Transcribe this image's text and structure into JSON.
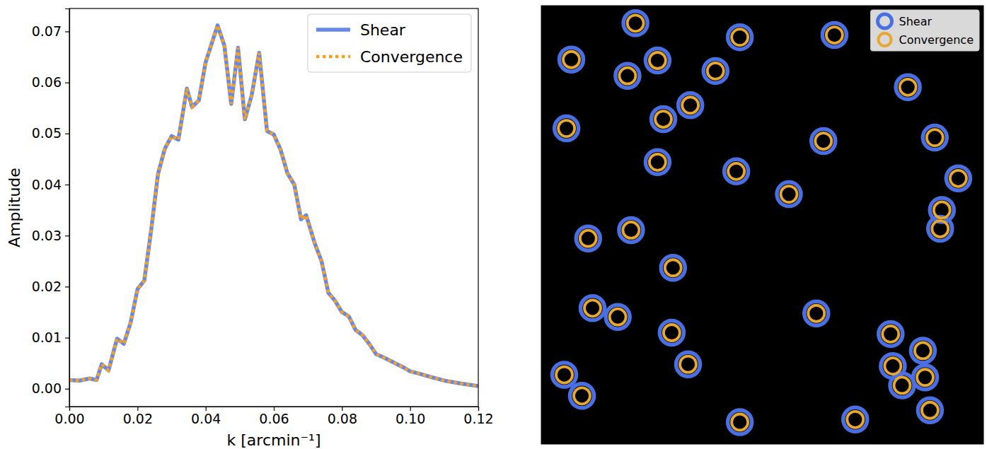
{
  "chart_data": [
    {
      "type": "line",
      "x_label": "k [arcmin⁻¹]",
      "y_label": "Amplitude",
      "x": [
        0.0,
        0.003,
        0.006,
        0.008,
        0.0095,
        0.0115,
        0.014,
        0.016,
        0.018,
        0.02,
        0.022,
        0.024,
        0.026,
        0.028,
        0.03,
        0.032,
        0.0345,
        0.036,
        0.038,
        0.04,
        0.0435,
        0.0455,
        0.0475,
        0.0495,
        0.0515,
        0.0535,
        0.0557,
        0.058,
        0.06,
        0.062,
        0.064,
        0.066,
        0.068,
        0.0695,
        0.072,
        0.074,
        0.076,
        0.078,
        0.08,
        0.082,
        0.084,
        0.086,
        0.088,
        0.09,
        0.092,
        0.095,
        0.098,
        0.1,
        0.103,
        0.106,
        0.11,
        0.115,
        0.12
      ],
      "series": [
        {
          "name": "Shear",
          "color": "#6688e8",
          "line_style": "solid",
          "values": [
            0.0017,
            0.0016,
            0.002,
            0.0017,
            0.0048,
            0.0036,
            0.0098,
            0.0088,
            0.013,
            0.0195,
            0.0212,
            0.031,
            0.042,
            0.047,
            0.0495,
            0.0488,
            0.0588,
            0.0552,
            0.0565,
            0.064,
            0.0712,
            0.0672,
            0.0558,
            0.0668,
            0.0528,
            0.0575,
            0.0658,
            0.0505,
            0.0498,
            0.0468,
            0.0422,
            0.04,
            0.0332,
            0.034,
            0.0285,
            0.025,
            0.0188,
            0.0172,
            0.015,
            0.0142,
            0.0115,
            0.0105,
            0.0088,
            0.0068,
            0.0062,
            0.0052,
            0.0042,
            0.0034,
            0.0029,
            0.0023,
            0.0016,
            0.001,
            0.0005
          ]
        },
        {
          "name": "Convergence",
          "color": "#f5a020",
          "line_style": "dotted",
          "values": [
            0.0017,
            0.0016,
            0.002,
            0.0017,
            0.0048,
            0.0036,
            0.0098,
            0.0088,
            0.013,
            0.0195,
            0.0212,
            0.031,
            0.042,
            0.047,
            0.0495,
            0.0488,
            0.0588,
            0.0552,
            0.0565,
            0.064,
            0.0712,
            0.0672,
            0.0558,
            0.0668,
            0.0528,
            0.0575,
            0.0658,
            0.0505,
            0.0498,
            0.0468,
            0.0422,
            0.04,
            0.0332,
            0.034,
            0.0285,
            0.025,
            0.0188,
            0.0172,
            0.015,
            0.0142,
            0.0115,
            0.0105,
            0.0088,
            0.0068,
            0.0062,
            0.0052,
            0.0042,
            0.0034,
            0.0029,
            0.0023,
            0.0016,
            0.001,
            0.0005
          ]
        }
      ],
      "xlim": [
        0.0,
        0.12
      ],
      "xticks": [
        {
          "value": 0.0,
          "label": "0.00"
        },
        {
          "value": 0.02,
          "label": "0.02"
        },
        {
          "value": 0.04,
          "label": "0.04"
        },
        {
          "value": 0.06,
          "label": "0.06"
        },
        {
          "value": 0.08,
          "label": "0.08"
        },
        {
          "value": 0.1,
          "label": "0.10"
        },
        {
          "value": 0.12,
          "label": "0.12"
        }
      ],
      "ylim": [
        -0.0035,
        0.0745
      ],
      "yticks": [
        {
          "value": 0.0,
          "label": "0.00"
        },
        {
          "value": 0.01,
          "label": "0.01"
        },
        {
          "value": 0.02,
          "label": "0.02"
        },
        {
          "value": 0.03,
          "label": "0.03"
        },
        {
          "value": 0.04,
          "label": "0.04"
        },
        {
          "value": 0.05,
          "label": "0.05"
        },
        {
          "value": 0.06,
          "label": "0.06"
        },
        {
          "value": 0.07,
          "label": "0.07"
        }
      ],
      "legend": "upper right"
    },
    {
      "type": "scatter",
      "tick_labels": false,
      "marker": "circle",
      "xlim": [
        0,
        100
      ],
      "ylim": [
        0,
        100
      ],
      "series": [
        {
          "name": "Shear",
          "color": "#4a6fe3",
          "x": [
            21.3,
            44.9,
            66.3,
            6.8,
            26.3,
            19.5,
            39.4,
            82.9,
            33.7,
            27.6,
            5.7,
            89.0,
            63.8,
            26.3,
            44.1,
            94.3,
            56.0,
            90.6,
            20.3,
            90.2,
            10.6,
            29.8,
            11.6,
            17.3,
            62.2,
            29.5,
            79.0,
            86.3,
            33.2,
            79.5,
            86.8,
            81.6,
            5.2,
            9.2,
            87.9,
            44.9,
            71.0
          ],
          "values": [
            96.0,
            92.8,
            93.3,
            87.7,
            87.5,
            84.0,
            85.1,
            81.4,
            77.3,
            74.1,
            72.0,
            69.9,
            69.1,
            64.3,
            62.2,
            60.6,
            57.0,
            53.4,
            48.8,
            49.1,
            46.9,
            40.2,
            31.0,
            29.0,
            29.8,
            25.4,
            25.1,
            21.3,
            18.2,
            17.8,
            15.2,
            13.4,
            15.8,
            11.0,
            7.7,
            5.0,
            5.6
          ]
        },
        {
          "name": "Convergence",
          "color": "#e8a830",
          "x": [
            21.3,
            44.9,
            66.3,
            6.8,
            26.3,
            19.5,
            39.4,
            82.9,
            33.7,
            27.6,
            5.7,
            89.0,
            63.8,
            26.3,
            44.1,
            94.3,
            56.0,
            90.6,
            20.3,
            90.2,
            10.6,
            29.8,
            11.6,
            17.3,
            62.2,
            29.5,
            79.0,
            86.3,
            33.2,
            79.5,
            86.8,
            81.6,
            5.2,
            9.2,
            87.9,
            44.9,
            71.0
          ],
          "values": [
            96.0,
            92.8,
            93.3,
            87.7,
            87.5,
            84.0,
            85.1,
            81.4,
            77.3,
            74.1,
            72.0,
            69.9,
            69.1,
            64.3,
            62.2,
            60.6,
            57.0,
            53.4,
            48.8,
            49.1,
            46.9,
            40.2,
            31.0,
            29.0,
            29.8,
            25.4,
            25.1,
            21.3,
            18.2,
            17.8,
            15.2,
            13.4,
            15.8,
            11.0,
            7.7,
            5.0,
            5.6
          ]
        }
      ],
      "legend": "upper right"
    }
  ]
}
